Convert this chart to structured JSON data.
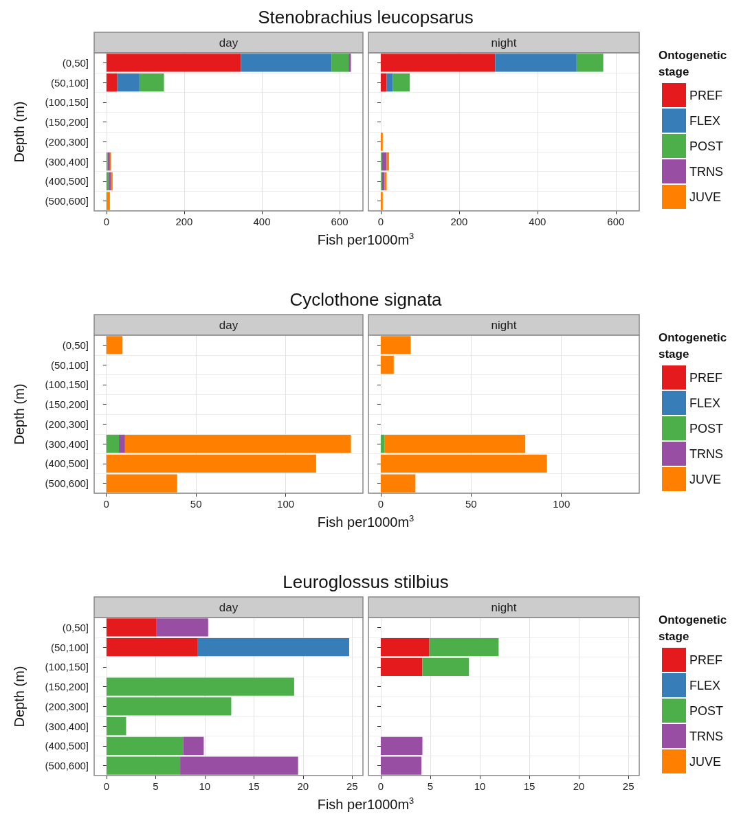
{
  "chart_data": [
    {
      "type": "bar",
      "orientation": "horizontal",
      "stacked": true,
      "title": "Stenobrachius leucopsarus",
      "subtitle": "day",
      "xlabel": "Fish per1000m$^{3}$",
      "ylabel": "Depth (m)",
      "categories": [
        "(0,50]",
        "(50,100]",
        "(100,150]",
        "(150,200]",
        "(200,300]",
        "(300,400]",
        "(400,500]",
        "(500,600]"
      ],
      "xlim": [
        -31.5,
        660
      ],
      "xticks": [
        0,
        200,
        400,
        600
      ],
      "grid": true,
      "legend": false,
      "series": [
        {
          "color": "#e41a1c",
          "values": [
            346,
            28,
            0,
            0,
            0,
            0,
            0,
            0
          ]
        },
        {
          "color": "#377eb8",
          "values": [
            233,
            57,
            0,
            0,
            0,
            0,
            0,
            0
          ]
        },
        {
          "color": "#4daf4a",
          "values": [
            44,
            63,
            0,
            0,
            0,
            3,
            6,
            2
          ]
        },
        {
          "color": "#984ea3",
          "values": [
            6,
            0,
            0,
            0,
            0,
            6,
            6,
            0
          ]
        },
        {
          "color": "#ff7f00",
          "values": [
            0,
            0,
            0,
            0,
            0,
            3,
            4,
            7
          ]
        }
      ]
    },
    {
      "type": "bar",
      "orientation": "horizontal",
      "stacked": true,
      "subtitle": "night",
      "legend_title": "Ontogenetic stage",
      "categories": [
        "(0,50]",
        "(50,100]",
        "(100,150]",
        "(150,200]",
        "(200,300]",
        "(300,400]",
        "(400,500]",
        "(500,600]"
      ],
      "xlim": [
        -31.5,
        660
      ],
      "xticks": [
        0,
        200,
        400,
        600
      ],
      "grid": true,
      "legend": "right",
      "tick_labels": "x",
      "series": [
        {
          "name": "PREF",
          "color": "#e41a1c",
          "values": [
            292,
            15,
            0,
            0,
            0,
            0,
            0,
            0
          ]
        },
        {
          "name": "FLEX",
          "color": "#377eb8",
          "values": [
            208,
            16,
            0,
            0,
            0,
            0,
            0,
            0
          ]
        },
        {
          "name": "POST",
          "color": "#4daf4a",
          "values": [
            68,
            43,
            0,
            0,
            0,
            3,
            3,
            0
          ]
        },
        {
          "name": "TRNS",
          "color": "#984ea3",
          "values": [
            0,
            0,
            0,
            0,
            0,
            12,
            6,
            0
          ]
        },
        {
          "name": "JUVE",
          "color": "#ff7f00",
          "values": [
            0,
            0,
            0,
            0,
            5,
            6,
            6,
            5
          ]
        }
      ]
    },
    {
      "type": "bar",
      "orientation": "horizontal",
      "stacked": true,
      "title": "Cyclothone signata",
      "subtitle": "day",
      "xlabel": "Fish per1000m$^{3}$",
      "ylabel": "Depth (m)",
      "categories": [
        "(0,50]",
        "(50,100]",
        "(100,150]",
        "(150,200]",
        "(200,300]",
        "(300,400]",
        "(400,500]",
        "(500,600]"
      ],
      "xlim": [
        -6.8,
        143.1
      ],
      "xticks": [
        0,
        50,
        100
      ],
      "grid": true,
      "legend": false,
      "series": [
        {
          "color": "#e41a1c",
          "values": [
            0,
            0,
            0,
            0,
            0,
            0,
            0,
            0
          ]
        },
        {
          "color": "#377eb8",
          "values": [
            0,
            0,
            0,
            0,
            0,
            0,
            0,
            0
          ]
        },
        {
          "color": "#4daf4a",
          "values": [
            0,
            0,
            0,
            0,
            0,
            7,
            0,
            0
          ]
        },
        {
          "color": "#984ea3",
          "values": [
            0,
            0,
            0,
            0,
            0,
            3.4,
            0,
            0
          ]
        },
        {
          "color": "#ff7f00",
          "values": [
            9,
            0,
            0,
            0,
            0,
            126,
            117,
            39.5
          ]
        }
      ]
    },
    {
      "type": "bar",
      "orientation": "horizontal",
      "stacked": true,
      "subtitle": "night",
      "legend_title": "Ontogenetic stage",
      "categories": [
        "(0,50]",
        "(50,100]",
        "(100,150]",
        "(150,200]",
        "(200,300]",
        "(300,400]",
        "(400,500]",
        "(500,600]"
      ],
      "xlim": [
        -6.8,
        143.1
      ],
      "xticks": [
        0,
        50,
        100
      ],
      "grid": true,
      "legend": "right",
      "tick_labels": "x",
      "series": [
        {
          "name": "PREF",
          "color": "#e41a1c",
          "values": [
            0,
            0,
            0,
            0,
            0,
            0,
            0,
            0
          ]
        },
        {
          "name": "FLEX",
          "color": "#377eb8",
          "values": [
            0,
            0,
            0,
            0,
            0,
            0,
            0,
            0
          ]
        },
        {
          "name": "POST",
          "color": "#4daf4a",
          "values": [
            0,
            0,
            0,
            0,
            0,
            2,
            0,
            0
          ]
        },
        {
          "name": "TRNS",
          "color": "#984ea3",
          "values": [
            0,
            0,
            0,
            0,
            0,
            0,
            0,
            0
          ]
        },
        {
          "name": "JUVE",
          "color": "#ff7f00",
          "values": [
            16.6,
            7.2,
            0,
            0,
            0,
            78,
            92,
            19.2
          ]
        }
      ]
    },
    {
      "type": "bar",
      "orientation": "horizontal",
      "stacked": true,
      "title": "Leuroglossus stilbius",
      "subtitle": "day",
      "xlabel": "Fish per1000m$^{3}$",
      "ylabel": "Depth (m)",
      "categories": [
        "(0,50]",
        "(50,100]",
        "(100,150]",
        "(150,200]",
        "(200,300]",
        "(300,400]",
        "(400,500]",
        "(500,600]"
      ],
      "xlim": [
        -1.25,
        26.1
      ],
      "xticks": [
        0,
        5,
        10,
        15,
        20,
        25
      ],
      "grid": true,
      "legend": false,
      "series": [
        {
          "color": "#e41a1c",
          "values": [
            5.05,
            9.3,
            0,
            0,
            0,
            0,
            0,
            0
          ]
        },
        {
          "color": "#377eb8",
          "values": [
            0,
            15.4,
            0,
            0,
            0,
            0,
            0,
            0
          ]
        },
        {
          "color": "#4daf4a",
          "values": [
            0,
            0,
            0,
            19.1,
            12.7,
            2.0,
            7.8,
            7.5
          ]
        },
        {
          "color": "#984ea3",
          "values": [
            5.3,
            0,
            0,
            0,
            0,
            0,
            2.1,
            12.0
          ]
        },
        {
          "color": "#ff7f00",
          "values": [
            0,
            0,
            0,
            0,
            0,
            0,
            0,
            0
          ]
        }
      ]
    },
    {
      "type": "bar",
      "orientation": "horizontal",
      "stacked": true,
      "subtitle": "night",
      "legend_title": "Ontogenetic stage",
      "categories": [
        "(0,50]",
        "(50,100]",
        "(100,150]",
        "(150,200]",
        "(200,300]",
        "(300,400]",
        "(400,500]",
        "(500,600]"
      ],
      "xlim": [
        -1.25,
        26.1
      ],
      "xticks": [
        0,
        5,
        10,
        15,
        20,
        25
      ],
      "grid": true,
      "legend": "right",
      "tick_labels": "x",
      "series": [
        {
          "name": "PREF",
          "color": "#e41a1c",
          "values": [
            0,
            4.9,
            4.2,
            0,
            0,
            0,
            0,
            0
          ]
        },
        {
          "name": "FLEX",
          "color": "#377eb8",
          "values": [
            0,
            0,
            0,
            0,
            0,
            0,
            0,
            0
          ]
        },
        {
          "name": "POST",
          "color": "#4daf4a",
          "values": [
            0,
            7.0,
            4.7,
            0,
            0,
            0,
            0,
            0
          ]
        },
        {
          "name": "TRNS",
          "color": "#984ea3",
          "values": [
            0,
            0,
            0,
            0,
            0,
            0,
            4.2,
            4.1
          ]
        },
        {
          "name": "JUVE",
          "color": "#ff7f00",
          "values": [
            0,
            0,
            0,
            0,
            0,
            0,
            0,
            0
          ]
        }
      ]
    }
  ]
}
